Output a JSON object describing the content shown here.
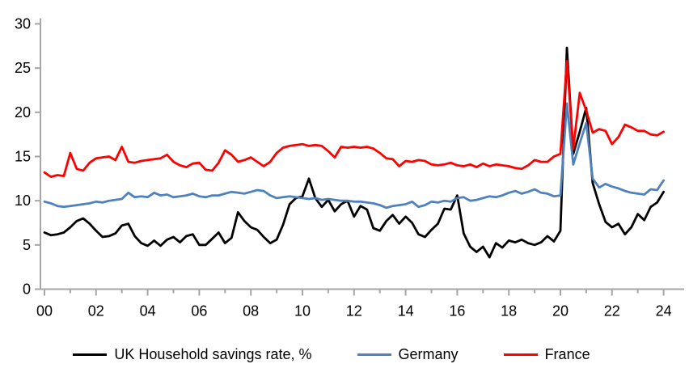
{
  "chart_data": {
    "type": "line",
    "title": "",
    "xlabel": "",
    "ylabel": "",
    "grid": false,
    "legend_position": "bottom",
    "x_axis": {
      "start_year": 2000,
      "step_years": 0.25,
      "tick_labels": [
        "00",
        "02",
        "04",
        "06",
        "08",
        "10",
        "12",
        "14",
        "16",
        "18",
        "20",
        "22",
        "24"
      ],
      "minor_ticks_every_years": 1
    },
    "y_axis": {
      "min": 0,
      "max": 30,
      "ticks": [
        0,
        5,
        10,
        15,
        20,
        25,
        30
      ]
    },
    "series": [
      {
        "name": "UK Household savings rate, %",
        "color": "#000000",
        "values": [
          6.4,
          6.1,
          6.2,
          6.4,
          7.0,
          7.7,
          8.0,
          7.4,
          6.6,
          5.9,
          6.0,
          6.3,
          7.2,
          7.4,
          6.0,
          5.2,
          4.9,
          5.5,
          4.9,
          5.6,
          5.9,
          5.3,
          6.0,
          6.2,
          5.0,
          5.0,
          5.7,
          6.4,
          5.2,
          5.8,
          8.7,
          7.7,
          7.0,
          6.7,
          5.9,
          5.2,
          5.6,
          7.3,
          9.6,
          10.3,
          10.5,
          12.5,
          10.3,
          9.3,
          10.1,
          8.8,
          9.6,
          10.0,
          8.2,
          9.4,
          9.0,
          6.9,
          6.6,
          7.7,
          8.4,
          7.4,
          8.2,
          7.5,
          6.2,
          5.9,
          6.7,
          7.4,
          9.1,
          9.0,
          10.6,
          6.3,
          4.8,
          4.2,
          4.8,
          3.6,
          5.2,
          4.7,
          5.5,
          5.3,
          5.6,
          5.2,
          5.0,
          5.3,
          6.0,
          5.4,
          6.6,
          27.3,
          15.3,
          17.8,
          20.5,
          12.0,
          9.6,
          7.6,
          7.0,
          7.4,
          6.2,
          7.0,
          8.5,
          7.8,
          9.3,
          9.8,
          11.0
        ]
      },
      {
        "name": "Germany",
        "color": "#4F81BD",
        "values": [
          9.9,
          9.7,
          9.4,
          9.3,
          9.4,
          9.5,
          9.6,
          9.7,
          9.9,
          9.8,
          10.0,
          10.1,
          10.2,
          10.9,
          10.4,
          10.5,
          10.4,
          10.9,
          10.6,
          10.7,
          10.4,
          10.5,
          10.6,
          10.8,
          10.5,
          10.4,
          10.6,
          10.6,
          10.8,
          11.0,
          10.9,
          10.8,
          11.0,
          11.2,
          11.1,
          10.6,
          10.3,
          10.4,
          10.5,
          10.4,
          10.3,
          10.2,
          10.3,
          10.1,
          10.2,
          10.1,
          10.0,
          10.0,
          9.9,
          9.9,
          9.8,
          9.7,
          9.5,
          9.2,
          9.4,
          9.5,
          9.6,
          9.9,
          9.3,
          9.5,
          9.9,
          9.8,
          10.0,
          9.9,
          10.3,
          10.4,
          10.0,
          10.1,
          10.3,
          10.5,
          10.4,
          10.6,
          10.9,
          11.1,
          10.8,
          11.0,
          11.3,
          10.9,
          10.8,
          10.5,
          10.6,
          21.0,
          14.1,
          16.5,
          18.8,
          12.5,
          11.5,
          11.9,
          11.6,
          11.4,
          11.1,
          10.9,
          10.8,
          10.7,
          11.3,
          11.2,
          12.3
        ]
      },
      {
        "name": "France",
        "color": "#FF0000",
        "values": [
          13.2,
          12.7,
          12.9,
          12.8,
          15.4,
          13.6,
          13.4,
          14.3,
          14.8,
          14.9,
          15.0,
          14.6,
          16.1,
          14.4,
          14.3,
          14.5,
          14.6,
          14.7,
          14.8,
          15.2,
          14.4,
          14.0,
          13.8,
          14.2,
          14.3,
          13.5,
          13.4,
          14.3,
          15.7,
          15.2,
          14.4,
          14.6,
          14.9,
          14.4,
          13.9,
          14.4,
          15.4,
          16.0,
          16.2,
          16.3,
          16.4,
          16.2,
          16.3,
          16.2,
          15.6,
          14.9,
          16.1,
          16.0,
          16.1,
          16.0,
          16.1,
          15.9,
          15.4,
          14.8,
          14.7,
          13.9,
          14.5,
          14.4,
          14.6,
          14.5,
          14.1,
          14.0,
          14.1,
          14.3,
          14.0,
          13.9,
          14.1,
          13.8,
          14.2,
          13.9,
          14.1,
          14.0,
          13.9,
          13.7,
          13.6,
          14.0,
          14.6,
          14.4,
          14.4,
          15.0,
          15.3,
          25.8,
          15.9,
          22.2,
          20.2,
          17.7,
          18.1,
          17.9,
          16.4,
          17.2,
          18.6,
          18.3,
          17.9,
          17.9,
          17.5,
          17.4,
          17.8
        ]
      }
    ]
  },
  "colors": {
    "axis": "#A6A6A6",
    "text": "#000000",
    "background": "#FFFFFF"
  }
}
